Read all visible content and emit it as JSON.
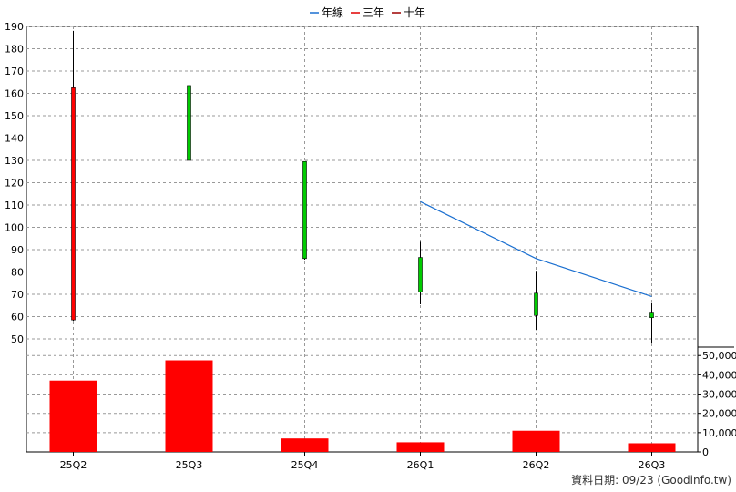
{
  "chart_data": {
    "type": "candlestick",
    "categories": [
      "25Q2",
      "25Q3",
      "25Q4",
      "26Q1",
      "26Q2",
      "26Q3"
    ],
    "ohlc": [
      {
        "open": 58.5,
        "high": 188,
        "low": 58,
        "close": 162.5
      },
      {
        "open": 163.5,
        "high": 178,
        "low": 129.5,
        "close": 130
      },
      {
        "open": 129.5,
        "high": 129.5,
        "low": 85.5,
        "close": 86
      },
      {
        "open": 86.5,
        "high": 93.5,
        "low": 65.5,
        "close": 71
      },
      {
        "open": 70.5,
        "high": 80.5,
        "low": 54,
        "close": 60.5
      },
      {
        "open": 62,
        "high": 66,
        "low": 48,
        "close": 59.5
      }
    ],
    "lines": [
      {
        "name": "年線",
        "color": "#1a6fd0",
        "values": [
          null,
          null,
          null,
          111.5,
          86,
          69
        ]
      },
      {
        "name": "三年",
        "color": "#e00000",
        "values": [
          null,
          null,
          null,
          null,
          null,
          null
        ]
      },
      {
        "name": "十年",
        "color": "#9c0000",
        "values": [
          null,
          null,
          null,
          null,
          null,
          null
        ]
      }
    ],
    "volume": [
      37000,
      47500,
      7000,
      5000,
      11000,
      4500
    ],
    "price_axis": {
      "min": 44,
      "max": 190,
      "ticks": [
        50,
        60,
        70,
        80,
        90,
        100,
        110,
        120,
        130,
        140,
        150,
        160,
        170,
        180,
        190
      ]
    },
    "volume_axis": {
      "min": 0,
      "max": 52000,
      "ticks": [
        0,
        10000,
        20000,
        30000,
        40000,
        50000
      ],
      "tick_labels": [
        "0",
        "10,000",
        "20,000",
        "30,000",
        "40,000",
        "50,000"
      ]
    },
    "grid": true,
    "legend_position": "top-center"
  },
  "colors": {
    "up": "#ff0000",
    "down": "#00cc00",
    "volume": "#ff0000",
    "wick": "#000000",
    "grid": "#999999"
  },
  "footer": "資料日期: 09/23  (Goodinfo.tw)"
}
